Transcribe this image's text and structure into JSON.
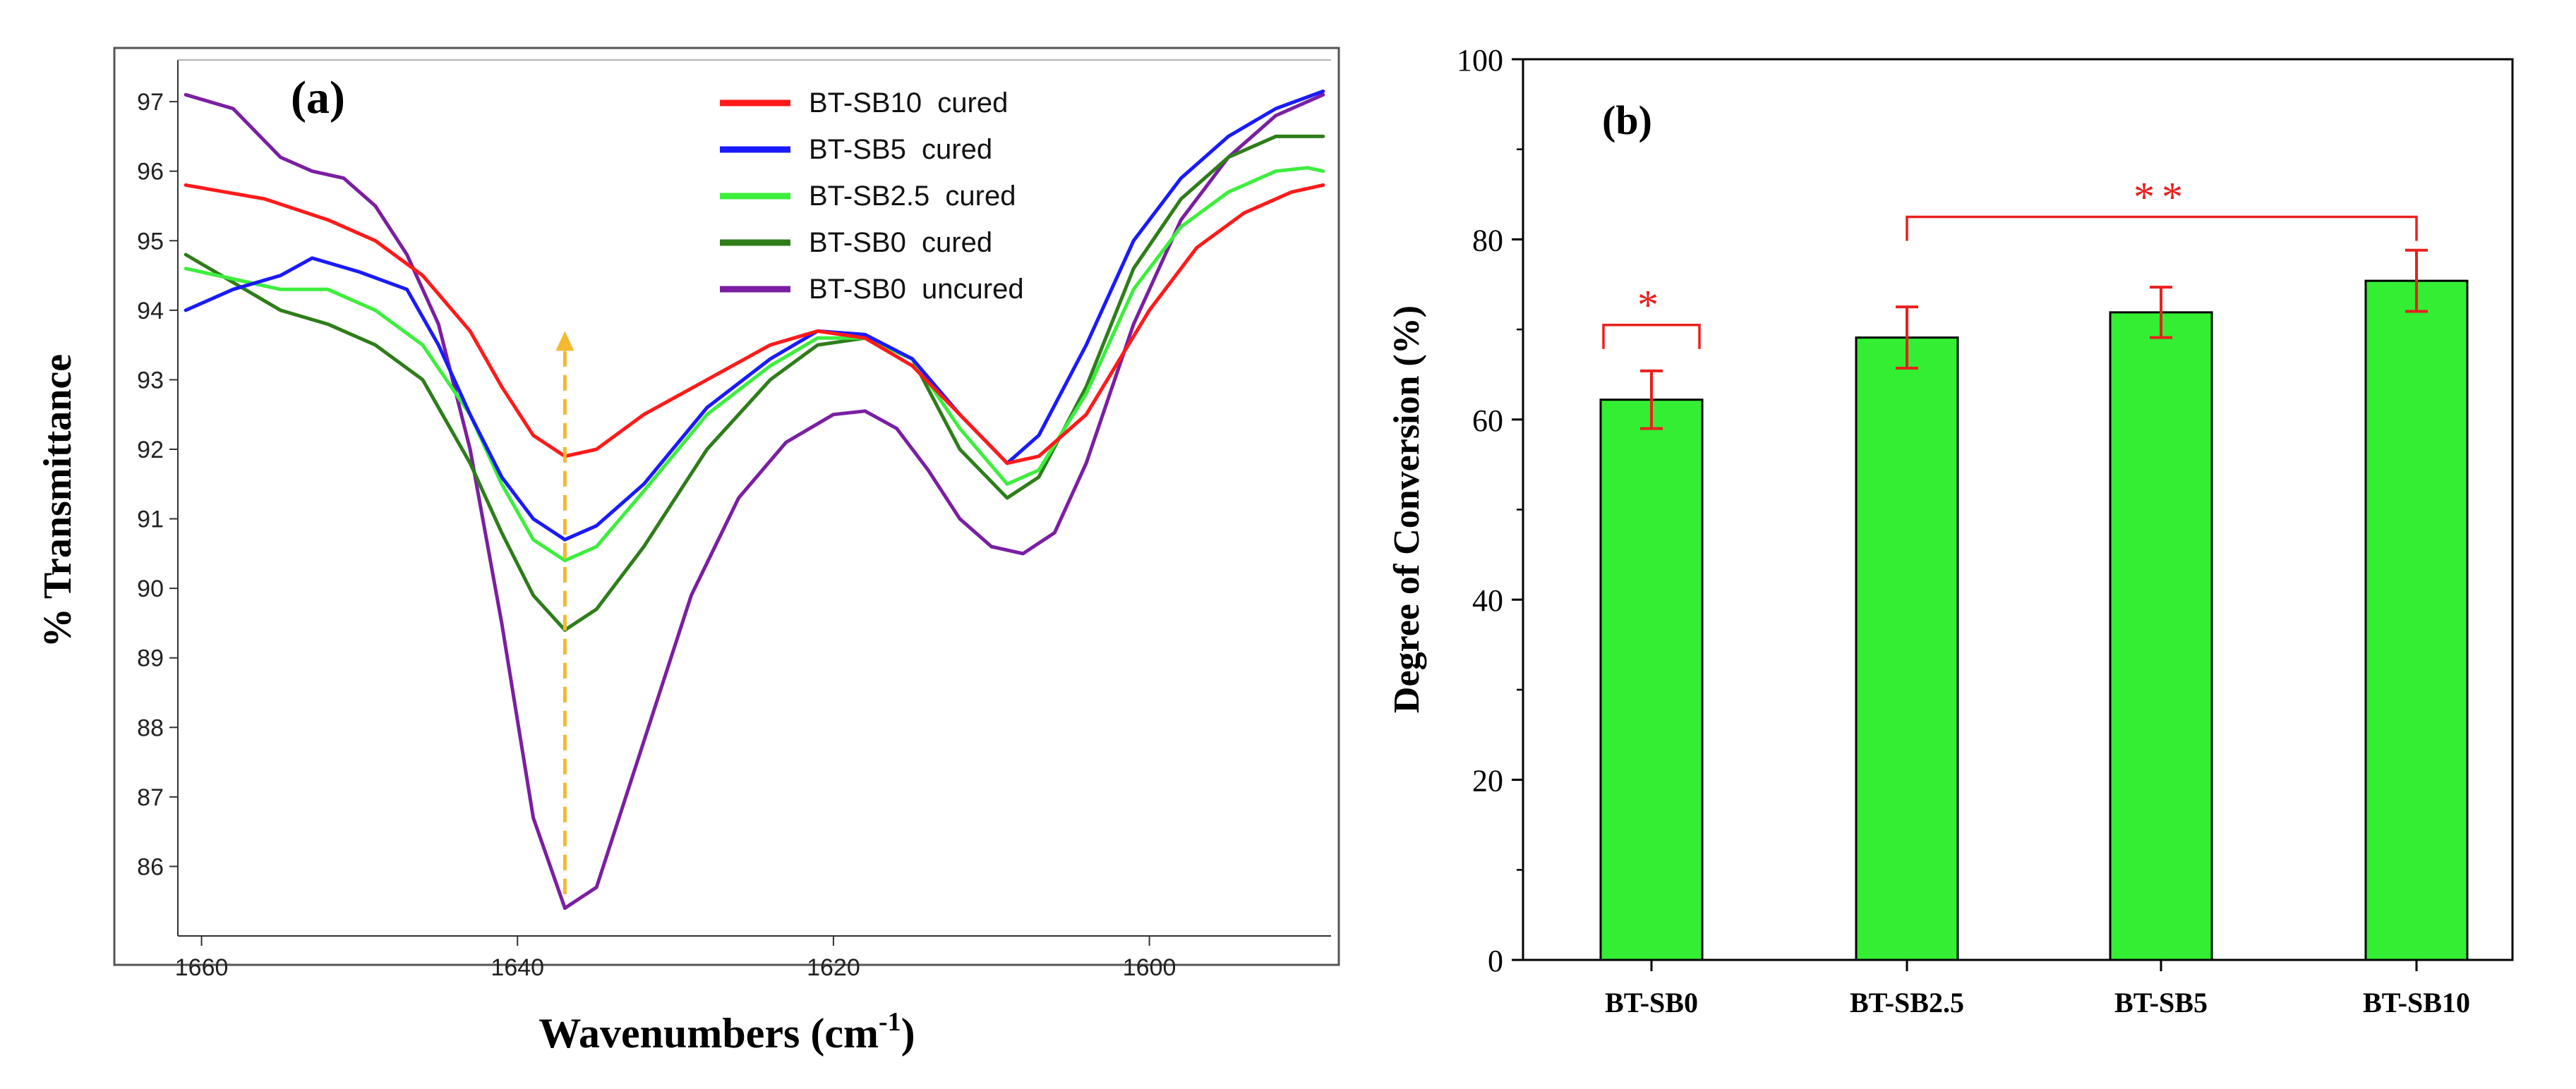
{
  "chart_data": [
    {
      "panel_label": "(a)",
      "type": "line",
      "title": "",
      "xlabel": "Wavenumbers (cm",
      "xlabel_sup": "-1",
      "xlabel_close": ")",
      "ylabel": "% Transmittance",
      "xlim": [
        1661.5,
        1588.5
      ],
      "ylim": [
        85,
        97.6
      ],
      "x_ticks": [
        1660,
        1640,
        1620,
        1600
      ],
      "y_ticks": [
        86,
        87,
        88,
        89,
        90,
        91,
        92,
        93,
        94,
        95,
        96,
        97
      ],
      "arrow": {
        "x": 1637,
        "from_y": 85.6,
        "to_y": 93.7,
        "color": "#f5b82e"
      },
      "series": [
        {
          "name": "BT-SB10  cured",
          "color": "#ff1a1a",
          "x": [
            1661,
            1656,
            1652,
            1649,
            1646,
            1643,
            1641,
            1639,
            1637,
            1635,
            1632,
            1628,
            1624,
            1621,
            1618,
            1615,
            1612,
            1609,
            1607,
            1604,
            1600,
            1597,
            1594,
            1591,
            1589
          ],
          "y": [
            95.8,
            95.6,
            95.3,
            95.0,
            94.5,
            93.7,
            92.9,
            92.2,
            91.9,
            92.0,
            92.5,
            93.0,
            93.5,
            93.7,
            93.6,
            93.2,
            92.5,
            91.8,
            91.9,
            92.5,
            94.0,
            94.9,
            95.4,
            95.7,
            95.8
          ]
        },
        {
          "name": "BT-SB5  cured",
          "color": "#1a1aff",
          "x": [
            1661,
            1658,
            1655,
            1653,
            1650,
            1647,
            1645,
            1643,
            1641,
            1639,
            1637,
            1635,
            1632,
            1628,
            1624,
            1621,
            1618,
            1615,
            1612,
            1609,
            1607,
            1604,
            1601,
            1598,
            1595,
            1592,
            1589
          ],
          "y": [
            94.0,
            94.3,
            94.5,
            94.75,
            94.55,
            94.3,
            93.5,
            92.5,
            91.6,
            91.0,
            90.7,
            90.9,
            91.5,
            92.6,
            93.3,
            93.7,
            93.65,
            93.3,
            92.5,
            91.8,
            92.2,
            93.5,
            95.0,
            95.9,
            96.5,
            96.9,
            97.15
          ]
        },
        {
          "name": "BT-SB2.5  cured",
          "color": "#3dee3d",
          "x": [
            1661,
            1658,
            1655,
            1652,
            1649,
            1646,
            1643,
            1641,
            1639,
            1637,
            1635,
            1632,
            1628,
            1624,
            1621,
            1618,
            1615,
            1612,
            1609,
            1607,
            1604,
            1601,
            1598,
            1595,
            1592,
            1590,
            1589
          ],
          "y": [
            94.6,
            94.45,
            94.3,
            94.3,
            94.0,
            93.5,
            92.5,
            91.5,
            90.7,
            90.4,
            90.6,
            91.4,
            92.5,
            93.2,
            93.6,
            93.6,
            93.3,
            92.3,
            91.5,
            91.7,
            92.8,
            94.3,
            95.2,
            95.7,
            96.0,
            96.05,
            96.0
          ]
        },
        {
          "name": "BT-SB0  cured",
          "color": "#2e7d1a",
          "x": [
            1661,
            1658,
            1655,
            1652,
            1649,
            1646,
            1643,
            1641,
            1639,
            1637,
            1635,
            1632,
            1628,
            1624,
            1621,
            1618,
            1615,
            1612,
            1609,
            1607,
            1604,
            1601,
            1598,
            1595,
            1592,
            1590,
            1589
          ],
          "y": [
            94.8,
            94.4,
            94.0,
            93.8,
            93.5,
            93.0,
            91.8,
            90.8,
            89.9,
            89.4,
            89.7,
            90.6,
            92.0,
            93.0,
            93.5,
            93.6,
            93.3,
            92.0,
            91.3,
            91.6,
            92.9,
            94.6,
            95.6,
            96.2,
            96.5,
            96.5,
            96.5
          ]
        },
        {
          "name": "BT-SB0  uncured",
          "color": "#7a1fa2",
          "x": [
            1661,
            1658,
            1655,
            1653,
            1651,
            1649,
            1647,
            1645,
            1643,
            1641,
            1639,
            1637,
            1635,
            1632,
            1629,
            1626,
            1623,
            1620,
            1618,
            1616,
            1614,
            1612,
            1610,
            1608,
            1606,
            1604,
            1601,
            1598,
            1595,
            1592,
            1589
          ],
          "y": [
            97.1,
            96.9,
            96.2,
            96.0,
            95.9,
            95.5,
            94.8,
            93.8,
            92.0,
            89.5,
            86.7,
            85.4,
            85.7,
            87.8,
            89.9,
            91.3,
            92.1,
            92.5,
            92.55,
            92.3,
            91.7,
            91.0,
            90.6,
            90.5,
            90.8,
            91.8,
            93.8,
            95.3,
            96.2,
            96.8,
            97.1
          ]
        }
      ]
    },
    {
      "panel_label": "(b)",
      "type": "bar",
      "title": "",
      "xlabel": "",
      "ylabel": "Degree of Conversion (%)",
      "ylim": [
        0,
        100
      ],
      "y_ticks": [
        0,
        20,
        40,
        60,
        80,
        100
      ],
      "categories": [
        "BT-SB0",
        "BT-SB2.5",
        "BT-SB5",
        "BT-SB10"
      ],
      "values": [
        62.2,
        69.1,
        71.9,
        75.4
      ],
      "errors": [
        3.2,
        3.4,
        2.8,
        3.4
      ],
      "bar_color": "#33ee33",
      "error_color": "#e8201e",
      "annotations": [
        {
          "text": "*",
          "from_category": 0,
          "to_category": 0,
          "y": 70.5
        },
        {
          "text": "**",
          "from_category": 1,
          "to_category": 3,
          "y": 82.5
        }
      ]
    }
  ]
}
